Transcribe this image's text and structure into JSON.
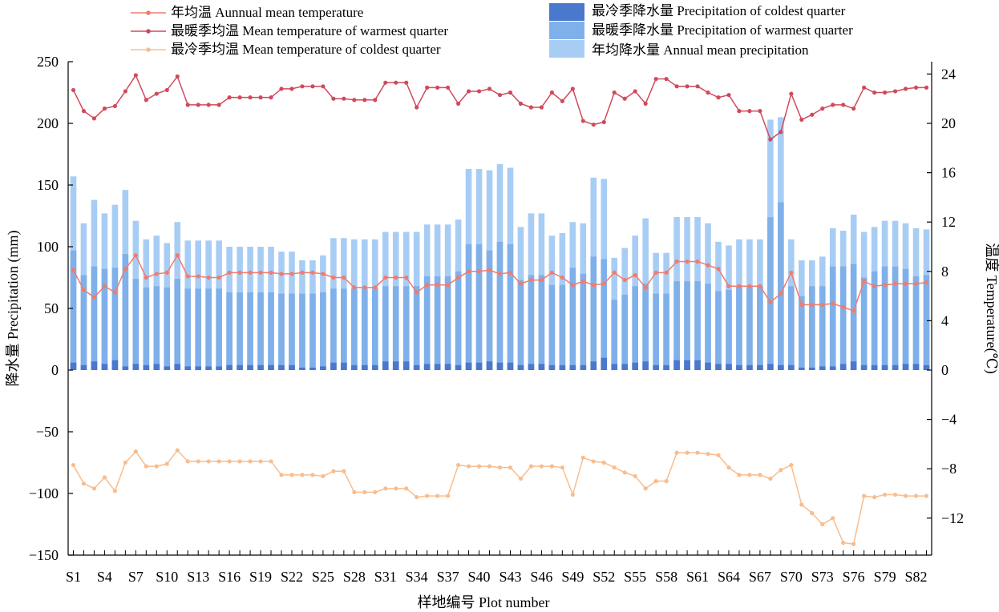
{
  "chart_data": {
    "type": "bar+line",
    "xlabel": "样地编号 Plot number",
    "ylabel_left": "降水量 Precipitation (mm)",
    "ylabel_right": "温度 Temperature(℃)",
    "ylim_left": [
      -150,
      250
    ],
    "ylim_right": [
      -15,
      25
    ],
    "yticks_left": [
      "−150",
      "−100",
      "−50",
      "0",
      "50",
      "100",
      "150",
      "200",
      "250"
    ],
    "yticks_right": [
      "−12",
      "−8",
      "−4",
      "0",
      "4",
      "8",
      "12",
      "16",
      "20",
      "24"
    ],
    "xtick_labels": [
      "S1",
      "S4",
      "S7",
      "S10",
      "S13",
      "S16",
      "S19",
      "S22",
      "S25",
      "S28",
      "S31",
      "S34",
      "S37",
      "S40",
      "S43",
      "S46",
      "S49",
      "S52",
      "S55",
      "S58",
      "S61",
      "S64",
      "S67",
      "S70",
      "S73",
      "S76",
      "S79",
      "S82"
    ],
    "legend": {
      "t_annual": "年均温 Aunnual mean temperature",
      "t_warm": "最暖季均温 Mean temperature of warmest quarter",
      "t_cold": "最冷季均温 Mean temperature of coldest quarter",
      "p_cold": "最冷季降水量 Precipitation of coldest quarter",
      "p_warm": "最暖季降水量 Precipitation of warmest quarter",
      "p_annual": "年均降水量 Annual mean precipitation"
    },
    "colors": {
      "p_annual": "#a8cdf5",
      "p_warm": "#7fb0ea",
      "p_cold": "#4a78cc",
      "t_annual": "#f07b6e",
      "t_warm": "#d04a5c",
      "t_cold": "#f7bd8f"
    },
    "series": {
      "precip_annual": [
        157,
        119,
        138,
        127,
        134,
        146,
        121,
        106,
        109,
        103,
        120,
        105,
        105,
        105,
        105,
        100,
        100,
        100,
        100,
        100,
        96,
        96,
        89,
        89,
        93,
        107,
        107,
        106,
        106,
        106,
        112,
        112,
        112,
        112,
        118,
        118,
        118,
        122,
        163,
        163,
        162,
        167,
        164,
        116,
        127,
        127,
        109,
        111,
        120,
        119,
        156,
        155,
        91,
        99,
        109,
        123,
        95,
        95,
        124,
        124,
        124,
        119,
        104,
        101,
        106,
        106,
        106,
        203,
        205,
        106,
        89,
        89,
        92,
        115,
        113,
        126,
        112,
        116,
        121,
        121,
        119,
        115,
        114
      ],
      "precip_warm": [
        97,
        77,
        84,
        82,
        83,
        94,
        74,
        67,
        68,
        67,
        74,
        66,
        66,
        66,
        66,
        63,
        63,
        63,
        63,
        63,
        62,
        62,
        62,
        62,
        63,
        66,
        66,
        66,
        66,
        66,
        68,
        68,
        68,
        68,
        76,
        76,
        76,
        80,
        102,
        102,
        97,
        104,
        102,
        73,
        77,
        77,
        69,
        69,
        83,
        78,
        92,
        90,
        57,
        61,
        68,
        70,
        62,
        62,
        72,
        72,
        72,
        70,
        64,
        65,
        68,
        68,
        68,
        124,
        136,
        68,
        60,
        68,
        68,
        84,
        84,
        86,
        75,
        80,
        84,
        84,
        82,
        76,
        77
      ],
      "precip_cold": [
        6,
        4,
        7,
        5,
        8,
        3,
        5,
        4,
        5,
        3,
        5,
        3,
        3,
        3,
        3,
        4,
        4,
        4,
        4,
        4,
        4,
        4,
        2,
        2,
        3,
        6,
        6,
        4,
        4,
        4,
        7,
        7,
        7,
        4,
        5,
        5,
        5,
        4,
        6,
        6,
        7,
        6,
        6,
        4,
        5,
        5,
        4,
        4,
        4,
        4,
        7,
        10,
        5,
        5,
        6,
        7,
        4,
        4,
        8,
        8,
        8,
        6,
        5,
        5,
        4,
        4,
        4,
        5,
        4,
        4,
        2,
        2,
        3,
        3,
        5,
        7,
        4,
        4,
        4,
        4,
        5,
        5,
        4
      ],
      "temp_annual": [
        8.1,
        6.5,
        5.9,
        6.8,
        6.3,
        8.2,
        9.3,
        7.5,
        7.8,
        7.9,
        9.3,
        7.6,
        7.6,
        7.5,
        7.5,
        7.9,
        7.9,
        7.9,
        7.9,
        7.9,
        7.8,
        7.8,
        7.9,
        7.9,
        7.8,
        7.5,
        7.5,
        6.7,
        6.7,
        6.7,
        7.5,
        7.5,
        7.5,
        6.3,
        6.9,
        6.9,
        6.9,
        7.5,
        8.0,
        8.0,
        8.1,
        7.8,
        7.9,
        7.0,
        7.3,
        7.3,
        7.9,
        7.5,
        6.9,
        7.2,
        6.9,
        7.0,
        7.9,
        7.3,
        7.7,
        6.7,
        7.9,
        7.9,
        8.8,
        8.8,
        8.8,
        8.5,
        8.2,
        6.8,
        6.8,
        6.8,
        6.8,
        5.5,
        6.2,
        7.9,
        5.3,
        5.3,
        5.3,
        5.4,
        5.1,
        4.8,
        7.2,
        6.8,
        6.9,
        7.0,
        7.0,
        7.0,
        7.1
      ],
      "temp_warm": [
        22.7,
        21.0,
        20.4,
        21.2,
        21.4,
        22.6,
        23.9,
        21.9,
        22.4,
        22.7,
        23.8,
        21.5,
        21.5,
        21.5,
        21.5,
        22.1,
        22.1,
        22.1,
        22.1,
        22.1,
        22.8,
        22.8,
        23.0,
        23.0,
        23.0,
        22.0,
        22.0,
        21.9,
        21.9,
        21.9,
        23.3,
        23.3,
        23.3,
        21.3,
        22.9,
        22.9,
        22.9,
        21.6,
        22.6,
        22.6,
        22.8,
        22.3,
        22.5,
        21.6,
        21.3,
        21.3,
        22.5,
        21.8,
        22.8,
        20.2,
        19.9,
        20.1,
        22.5,
        22.0,
        22.6,
        21.6,
        23.6,
        23.6,
        23.0,
        23.0,
        23.0,
        22.5,
        22.1,
        22.3,
        21.0,
        21.0,
        21.0,
        18.7,
        19.3,
        22.4,
        20.3,
        20.7,
        21.2,
        21.5,
        21.5,
        21.2,
        22.9,
        22.5,
        22.5,
        22.6,
        22.8,
        22.9,
        22.9
      ],
      "temp_cold": [
        -7.7,
        -9.2,
        -9.6,
        -8.7,
        -9.8,
        -7.5,
        -6.6,
        -7.8,
        -7.8,
        -7.6,
        -6.5,
        -7.4,
        -7.4,
        -7.4,
        -7.4,
        -7.4,
        -7.4,
        -7.4,
        -7.4,
        -7.4,
        -8.5,
        -8.5,
        -8.5,
        -8.5,
        -8.6,
        -8.2,
        -8.2,
        -9.9,
        -9.9,
        -9.9,
        -9.6,
        -9.6,
        -9.6,
        -10.3,
        -10.2,
        -10.2,
        -10.2,
        -7.7,
        -7.8,
        -7.8,
        -7.8,
        -7.9,
        -7.9,
        -8.8,
        -7.8,
        -7.8,
        -7.8,
        -7.9,
        -10.1,
        -7.1,
        -7.4,
        -7.5,
        -7.9,
        -8.3,
        -8.6,
        -9.6,
        -9.0,
        -9.0,
        -6.7,
        -6.7,
        -6.7,
        -6.8,
        -6.9,
        -7.9,
        -8.5,
        -8.5,
        -8.5,
        -8.8,
        -8.1,
        -7.7,
        -10.9,
        -11.6,
        -12.5,
        -12.0,
        -14.0,
        -14.1,
        -10.2,
        -10.3,
        -10.1,
        -10.1,
        -10.2,
        -10.2,
        -10.2
      ]
    }
  }
}
